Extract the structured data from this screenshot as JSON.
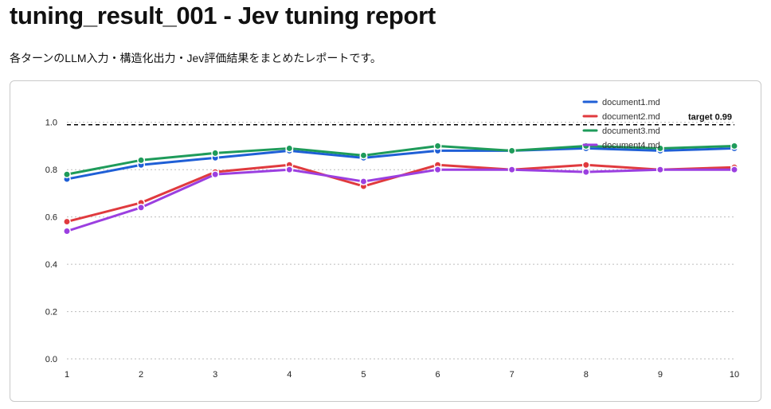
{
  "page": {
    "title": "tuning_result_001 - Jev tuning report",
    "subtitle": "各ターンのLLM入力・構造化出力・Jev評価結果をまとめたレポートです。"
  },
  "chart_data": {
    "type": "line",
    "title": "",
    "xlabel": "",
    "ylabel": "",
    "x": [
      1,
      2,
      3,
      4,
      5,
      6,
      7,
      8,
      9,
      10
    ],
    "x_tick_labels": [
      "1",
      "2",
      "3",
      "4",
      "5",
      "6",
      "7",
      "8",
      "9",
      "10"
    ],
    "ylim": [
      -0.02,
      1.1
    ],
    "y_ticks": [
      0.0,
      0.2,
      0.4,
      0.6,
      0.8,
      1.0
    ],
    "y_tick_labels": [
      "0.0",
      "0.2",
      "0.4",
      "0.6",
      "0.8",
      "1.0"
    ],
    "grid": "horizontal dotted",
    "legend_position": "top-right",
    "target": {
      "value": 0.99,
      "label": "target 0.99",
      "color": "#000000",
      "style": "dashed"
    },
    "series": [
      {
        "name": "document1.md",
        "color": "#1f5fd6",
        "values": [
          0.76,
          0.82,
          0.85,
          0.88,
          0.85,
          0.88,
          0.88,
          0.89,
          0.88,
          0.89
        ]
      },
      {
        "name": "document2.md",
        "color": "#e03a3e",
        "values": [
          0.58,
          0.66,
          0.79,
          0.82,
          0.73,
          0.82,
          0.8,
          0.82,
          0.8,
          0.81
        ]
      },
      {
        "name": "document3.md",
        "color": "#1e9b5a",
        "values": [
          0.78,
          0.84,
          0.87,
          0.89,
          0.86,
          0.9,
          0.88,
          0.9,
          0.89,
          0.9
        ]
      },
      {
        "name": "document4.md",
        "color": "#9b3fe0",
        "values": [
          0.54,
          0.64,
          0.78,
          0.8,
          0.75,
          0.8,
          0.8,
          0.79,
          0.8,
          0.8
        ]
      }
    ]
  }
}
